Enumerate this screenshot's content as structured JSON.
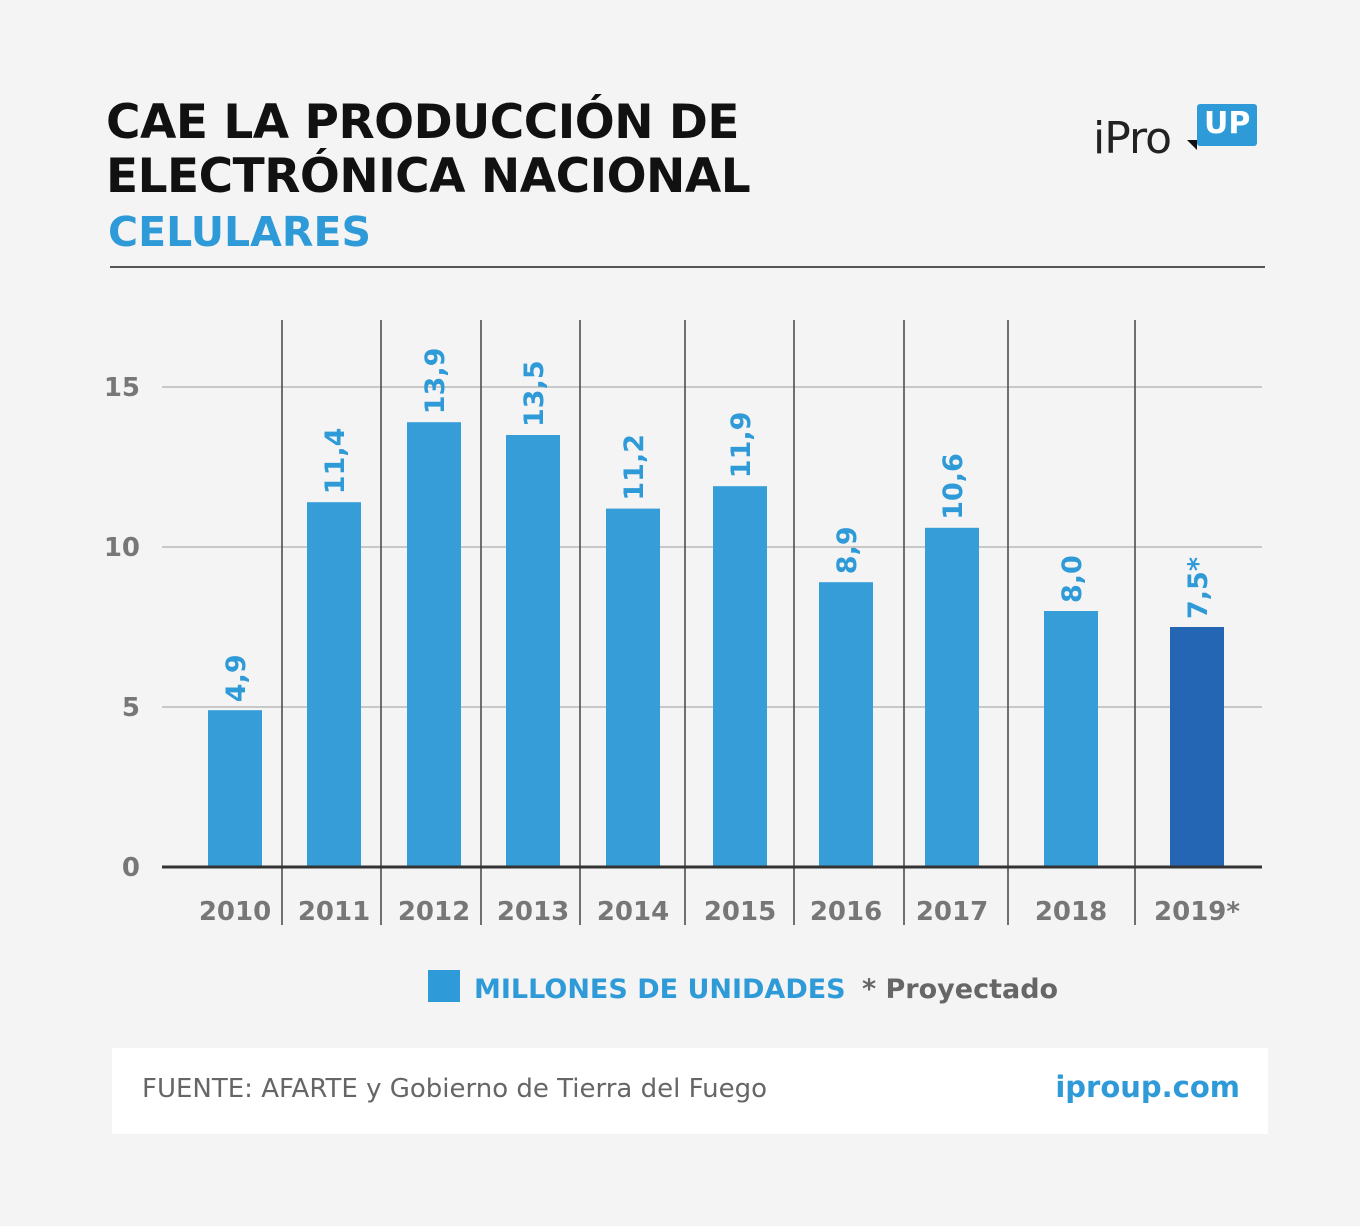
{
  "header": {
    "title_line1": "CAE LA PRODUCCIÓN DE",
    "title_line2": "ELECTRÓNICA NACIONAL",
    "subtitle": "CELULARES"
  },
  "logo": {
    "text": "iPro",
    "badge": "UP"
  },
  "legend": {
    "series_label": "MILLONES DE UNIDADES",
    "note": "* Proyectado"
  },
  "footer": {
    "source": "FUENTE: AFARTE y Gobierno de Tierra del Fuego",
    "site": "iproup.com"
  },
  "colors": {
    "bar": "#379dd8",
    "bar_projected": "#2466b4",
    "accent": "#2f9ad8"
  },
  "chart_data": {
    "type": "bar",
    "title": "CAE LA PRODUCCIÓN DE ELECTRÓNICA NACIONAL",
    "subtitle": "CELULARES",
    "categories": [
      "2010",
      "2011",
      "2012",
      "2013",
      "2014",
      "2015",
      "2016",
      "2017",
      "2018",
      "2019*"
    ],
    "values": [
      4.9,
      11.4,
      13.9,
      13.5,
      11.2,
      11.9,
      8.9,
      10.6,
      8.0,
      7.5
    ],
    "value_labels": [
      "4,9",
      "11,4",
      "13,9",
      "13,5",
      "11,2",
      "11,9",
      "8,9",
      "10,6",
      "8,0",
      "7,5*"
    ],
    "projected": [
      false,
      false,
      false,
      false,
      false,
      false,
      false,
      false,
      false,
      true
    ],
    "series": [
      {
        "name": "MILLONES DE UNIDADES",
        "values": [
          4.9,
          11.4,
          13.9,
          13.5,
          11.2,
          11.9,
          8.9,
          10.6,
          8.0,
          7.5
        ]
      }
    ],
    "yticks": [
      0,
      5,
      10,
      15
    ],
    "ylim": [
      0,
      17
    ],
    "grid": true,
    "legend": "bottom"
  }
}
